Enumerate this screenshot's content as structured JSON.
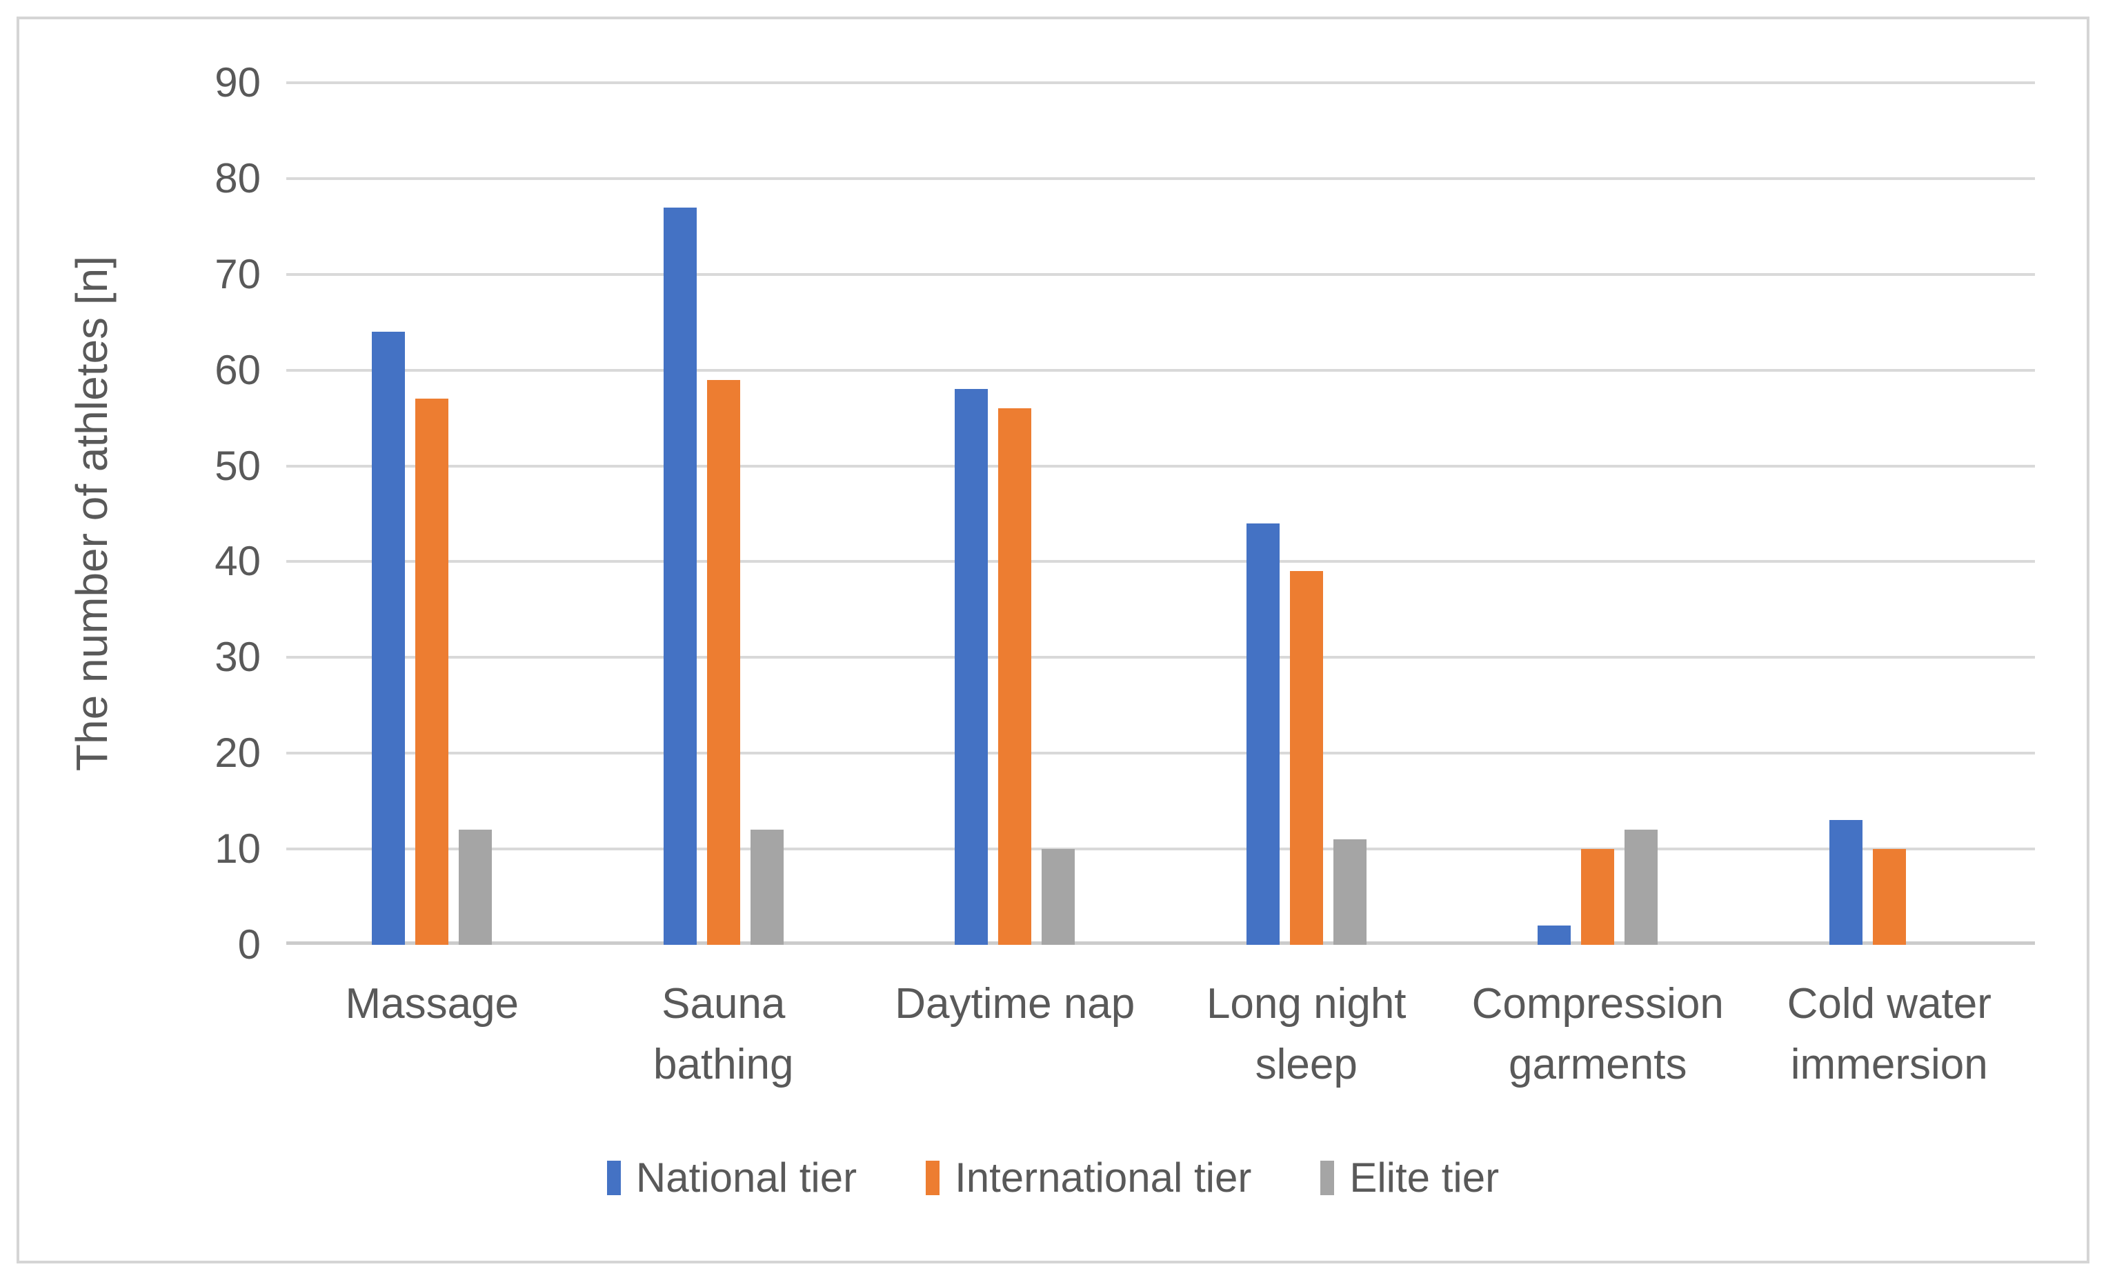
{
  "figure": {
    "background": "#ffffff",
    "border_color": "#d5d5d5"
  },
  "chart_data": {
    "type": "bar",
    "title": "",
    "xlabel": "",
    "ylabel": "The number of athletes [n]",
    "ylim": [
      0,
      90
    ],
    "yticks": [
      0,
      10,
      20,
      30,
      40,
      50,
      60,
      70,
      80,
      90
    ],
    "grid": "horizontal",
    "legend_position": "bottom",
    "categories": [
      "Massage",
      "Sauna\nbathing",
      "Daytime nap",
      "Long night\nsleep",
      "Compression\ngarments",
      "Cold water\nimmersion"
    ],
    "series": [
      {
        "name": "National tier",
        "color": "#4472C4",
        "values": [
          64,
          77,
          58,
          44,
          2,
          13
        ]
      },
      {
        "name": "International tier",
        "color": "#ED7D31",
        "values": [
          57,
          59,
          56,
          39,
          10,
          10
        ]
      },
      {
        "name": "Elite tier",
        "color": "#A5A5A5",
        "values": [
          12,
          12,
          10,
          11,
          12,
          0
        ]
      }
    ],
    "colors": {
      "gridline": "#D9D9D9",
      "axis_line": "#CBCBCB",
      "text": "#595959"
    }
  }
}
